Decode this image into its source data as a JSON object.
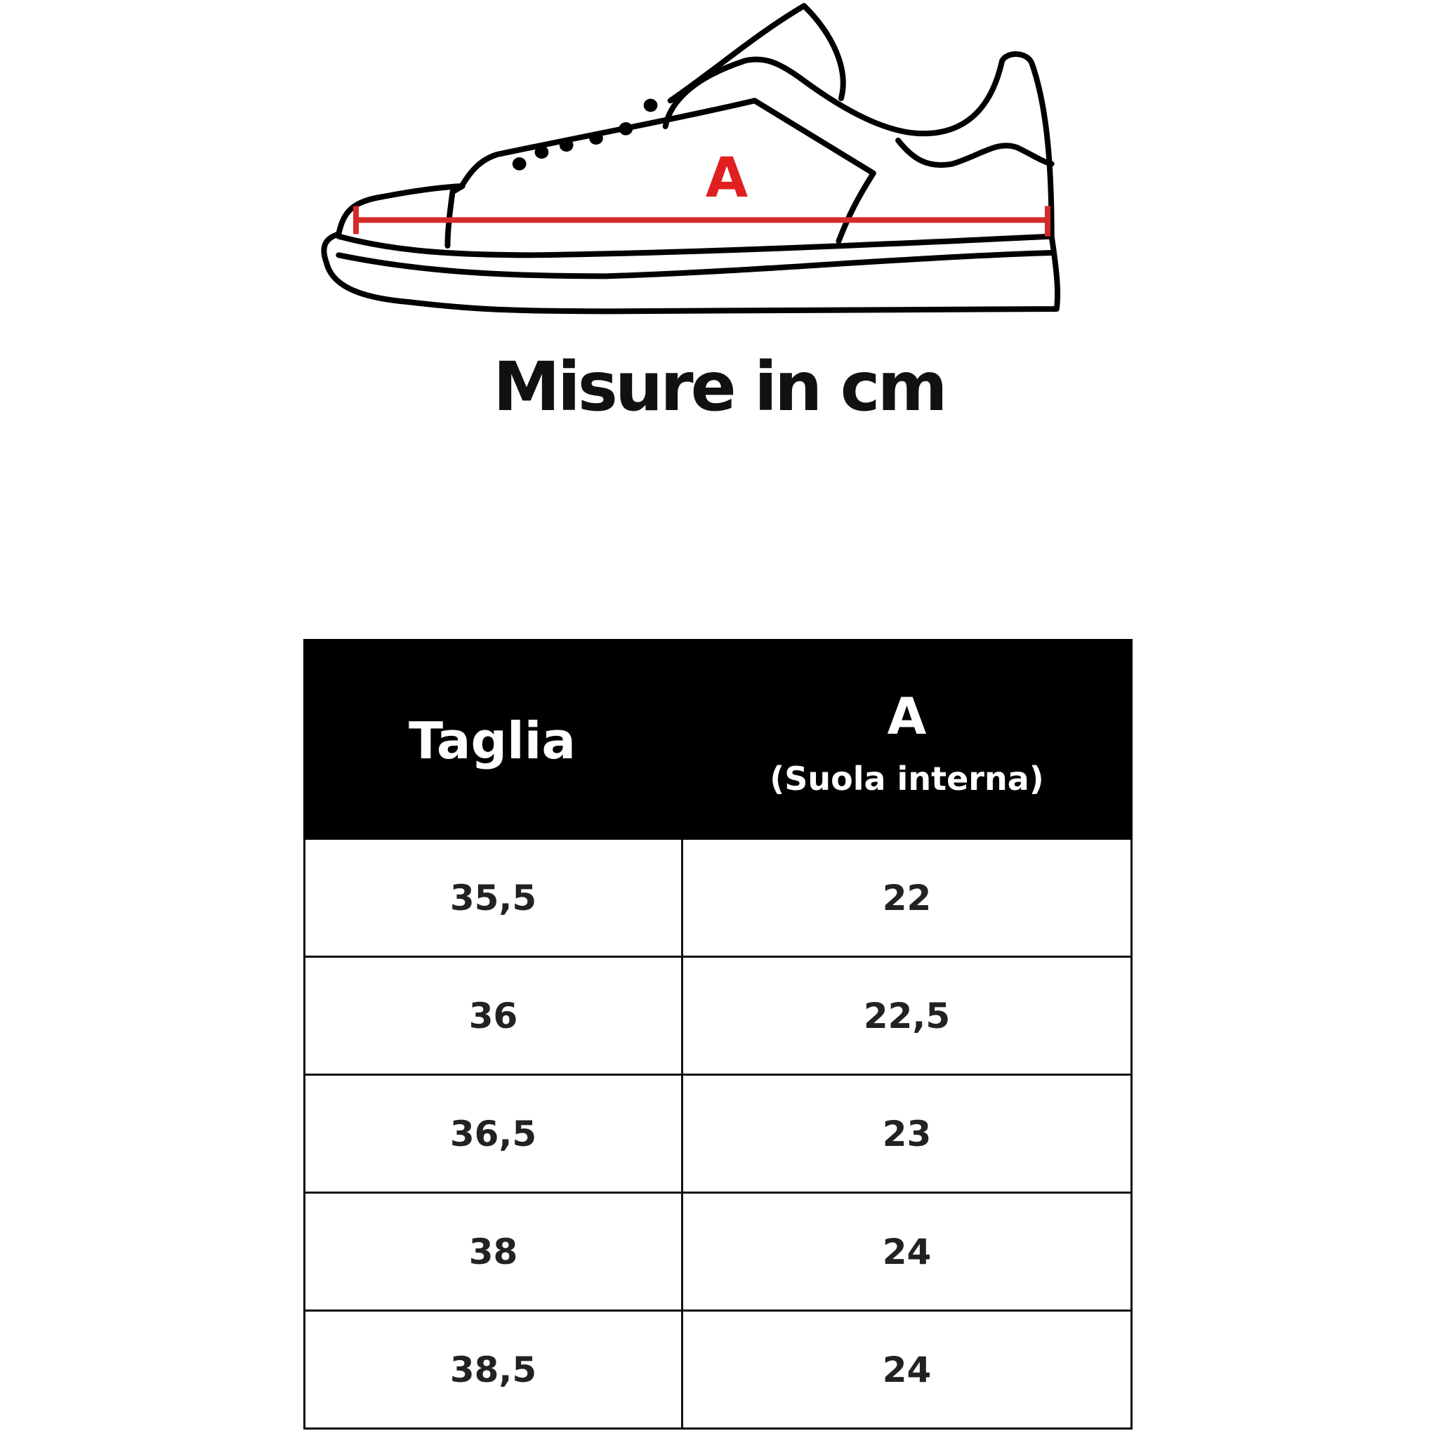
{
  "diagram": {
    "measure_label": "A",
    "measure_color": "#e02020"
  },
  "title": "Misure in cm",
  "table": {
    "headers": {
      "size": "Taglia",
      "measure": "A",
      "measure_sub": "(Suola interna)"
    },
    "rows": [
      {
        "size": "35,5",
        "a": "22"
      },
      {
        "size": "36",
        "a": "22,5"
      },
      {
        "size": "36,5",
        "a": "23"
      },
      {
        "size": "38",
        "a": "24"
      },
      {
        "size": "38,5",
        "a": "24"
      }
    ]
  }
}
